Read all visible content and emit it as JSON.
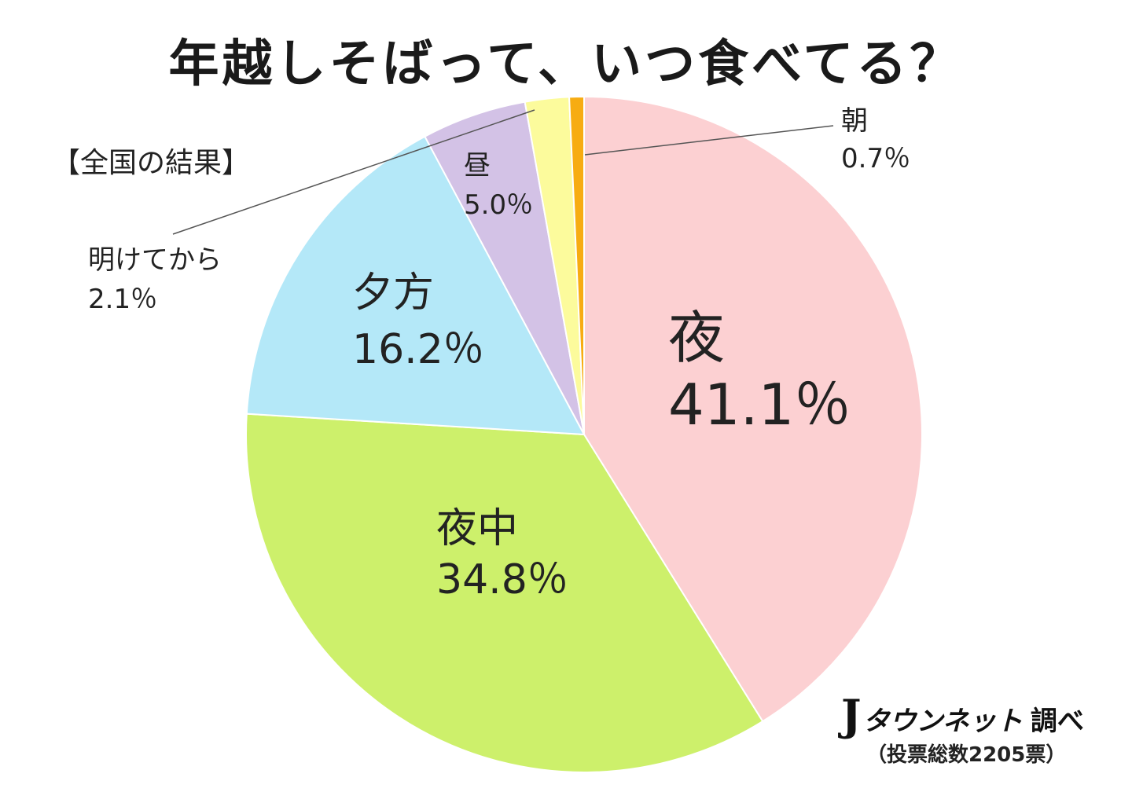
{
  "title": "年越しそばって、いつ食べてる？",
  "subtitle": "【全国の結果】",
  "chart_data": {
    "type": "pie",
    "title": "年越しそばって、いつ食べてる？",
    "subtitle": "【全国の結果】",
    "start_angle": "12 o'clock, clockwise",
    "slices": [
      {
        "name": "夜",
        "value": 41.1,
        "value_label": "41.1％",
        "color": "#fcd0d2"
      },
      {
        "name": "夜中",
        "value": 34.8,
        "value_label": "34.8％",
        "color": "#cdf06b"
      },
      {
        "name": "夕方",
        "value": 16.2,
        "value_label": "16.2％",
        "color": "#b4e8f8"
      },
      {
        "name": "昼",
        "value": 5.0,
        "value_label": "5.0％",
        "color": "#d3c2e6"
      },
      {
        "name": "明けてから",
        "value": 2.1,
        "value_label": "2.1％",
        "color": "#fcfb9c"
      },
      {
        "name": "朝",
        "value": 0.7,
        "value_label": "0.7％",
        "color": "#f7ac12"
      }
    ]
  },
  "footer": {
    "brand_j": "J",
    "brand_name": "タウンネット",
    "brand_suffix": "調べ",
    "votes": "（投票総数2205票）"
  }
}
